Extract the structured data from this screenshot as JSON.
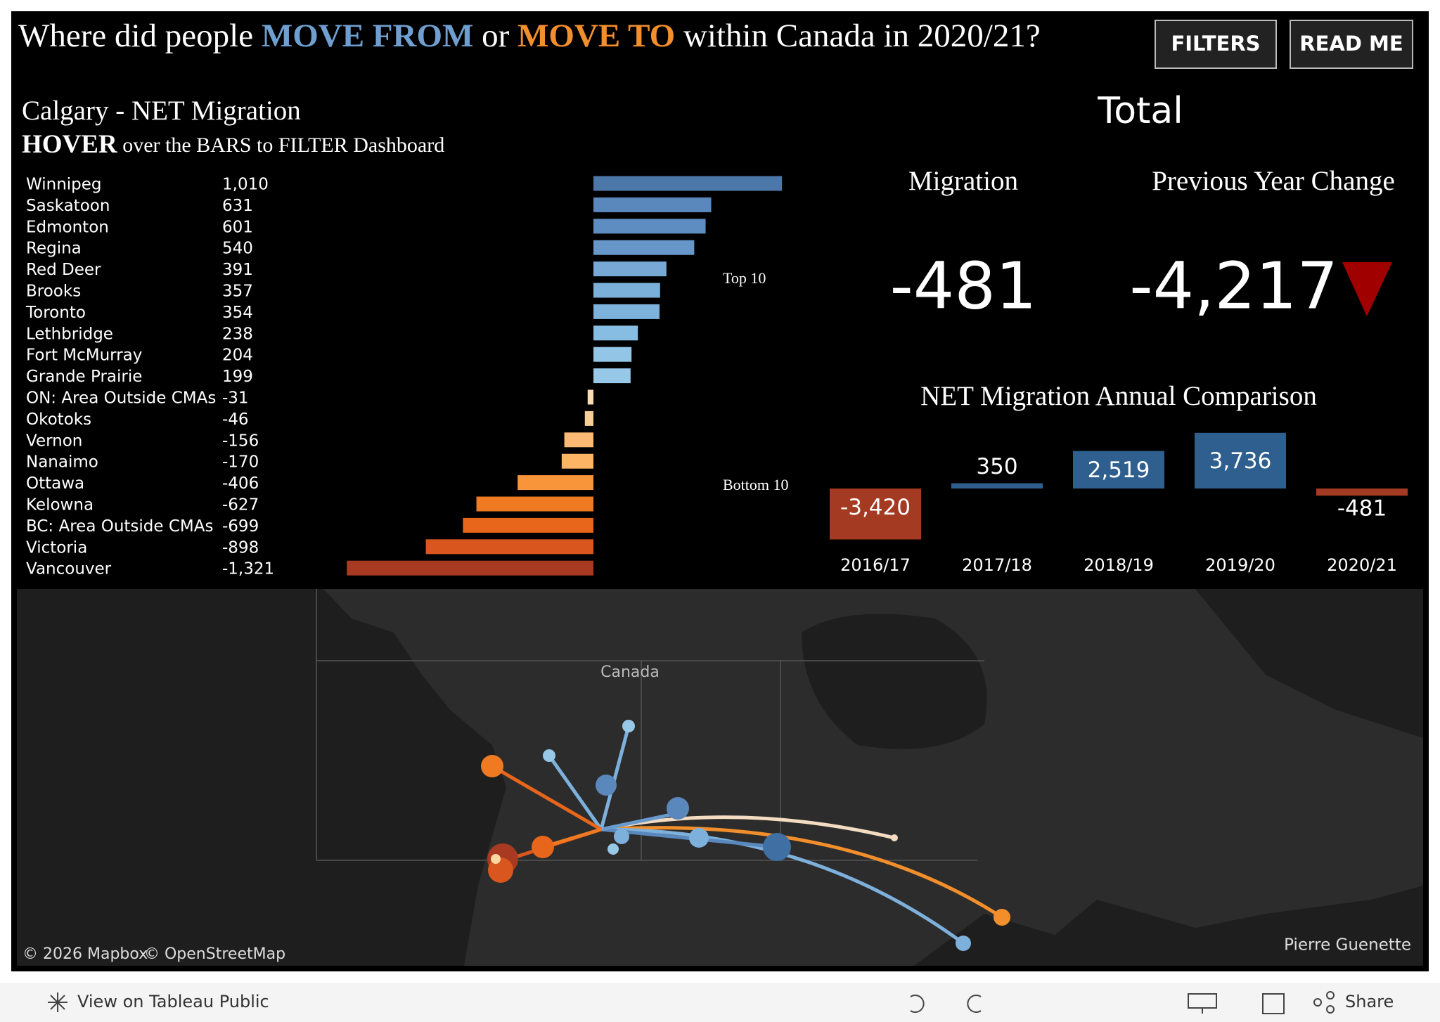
{
  "header": {
    "title_parts": [
      "Where did people",
      "MOVE FROM",
      "or",
      "MOVE TO",
      "within Canada in 2020/21?"
    ],
    "buttons": [
      "FILTERS",
      "READ ME"
    ]
  },
  "net_migration": {
    "type": "bar",
    "title": "Calgary - NET Migration",
    "subtitle_bold": "HOVER",
    "subtitle": "over the BARS to FILTER Dashboard",
    "categories": [
      "Winnipeg",
      "Saskatoon",
      "Edmonton",
      "Regina",
      "Red Deer",
      "Brooks",
      "Toronto",
      "Lethbridge",
      "Fort McMurray",
      "Grande Prairie",
      "ON: Area Outside CMAs",
      "Okotoks",
      "Vernon",
      "Nanaimo",
      "Ottawa",
      "Kelowna",
      "BC: Area Outside CMAs",
      "Victoria",
      "Vancouver"
    ],
    "values": [
      1010,
      631,
      601,
      540,
      391,
      357,
      354,
      238,
      204,
      199,
      -31,
      -46,
      -156,
      -170,
      -406,
      -627,
      -699,
      -898,
      -1321
    ],
    "value_labels": [
      "1,010",
      "631",
      "601",
      "540",
      "391",
      "357",
      "354",
      "238",
      "204",
      "199",
      "-31",
      "-46",
      "-156",
      "-170",
      "-406",
      "-627",
      "-699",
      "-898",
      "-1,321"
    ],
    "colors": [
      "#4b77a9",
      "#5a88bd",
      "#5e8dc2",
      "#6797c9",
      "#77a8d6",
      "#7ab0da",
      "#7cb2dc",
      "#87bde3",
      "#93c5e6",
      "#98c8e8",
      "#f7dcb4",
      "#f6cf98",
      "#fdba74",
      "#fdb565",
      "#f8953a",
      "#f07a22",
      "#e8661c",
      "#d9561e",
      "#a83a22"
    ],
    "group_labels": [
      "Top 10",
      "Bottom 10"
    ]
  },
  "total": {
    "title": "Total",
    "headers": [
      "Migration",
      "Previous Year Change"
    ],
    "migration": -481,
    "migration_label": "-481",
    "change": -4217,
    "change_label": "-4,217"
  },
  "annual": {
    "type": "bar",
    "title": "NET Migration Annual Comparison",
    "categories": [
      "2016/17",
      "2017/18",
      "2018/19",
      "2019/20",
      "2020/21"
    ],
    "values": [
      -3420,
      350,
      2519,
      3736,
      -481
    ],
    "value_labels": [
      "-3,420",
      "350",
      "2,519",
      "3,736",
      "-481"
    ],
    "positive_color": "#2e5f8f",
    "negative_color": "#a33a21"
  },
  "map": {
    "place_label": "Canada",
    "attribution": [
      "© 2026 Mapbox",
      "© OpenStreetMap"
    ],
    "credit": "Pierre Guenette"
  },
  "toolbar": {
    "view": "View on Tableau Public",
    "share": "Share"
  }
}
